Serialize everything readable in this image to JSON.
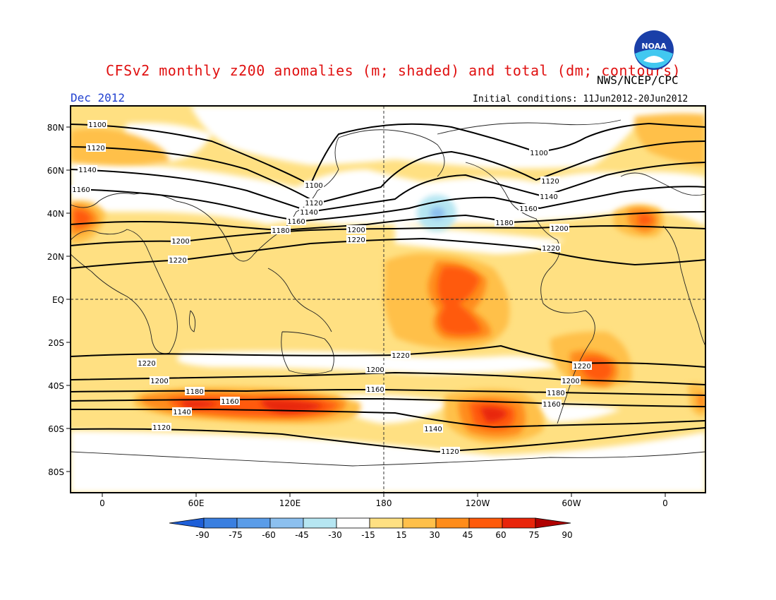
{
  "header": {
    "title": "CFSv2 monthly z200 anomalies (m; shaded) and total (dm; contours)",
    "agency": "NWS/NCEP/CPC",
    "month": "Dec 2012",
    "initial_conditions": "Initial conditions: 11Jun2012-20Jun2012",
    "logo_text": "NOAA"
  },
  "map": {
    "lat_labels": [
      "80N",
      "60N",
      "40N",
      "20N",
      "EQ",
      "20S",
      "40S",
      "60S",
      "80S"
    ],
    "lon_labels": [
      "0",
      "60E",
      "120E",
      "180",
      "120W",
      "60W",
      "0"
    ],
    "contours": [
      {
        "label": "1100"
      },
      {
        "label": "1120"
      },
      {
        "label": "1140"
      },
      {
        "label": "1160"
      },
      {
        "label": "1180"
      },
      {
        "label": "1200"
      },
      {
        "label": "1220"
      }
    ]
  },
  "colorbar": {
    "ticks": [
      "-90",
      "-75",
      "-60",
      "-45",
      "-30",
      "-15",
      "15",
      "30",
      "45",
      "60",
      "75",
      "90"
    ],
    "colors": [
      "#1e5fd8",
      "#3a7fe0",
      "#5a9ce8",
      "#8cc0ef",
      "#b6e6f2",
      "#ffffff",
      "#ffe082",
      "#ffc04a",
      "#ff8c1a",
      "#ff5a0a",
      "#e8250a",
      "#b00000"
    ]
  }
}
